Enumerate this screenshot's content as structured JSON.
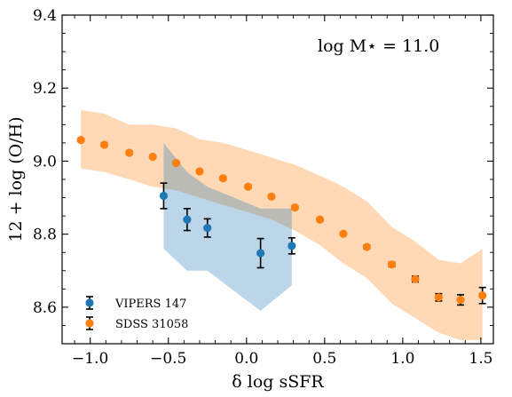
{
  "chart_data": {
    "type": "scatter",
    "xlabel": "δ log sSFR",
    "ylabel": "12 + log (O/H)",
    "annotation": "log M⋆ = 11.0",
    "xlim": [
      -1.18,
      1.58
    ],
    "ylim": [
      8.5,
      9.4
    ],
    "xticks": [
      -1.0,
      -0.5,
      0.0,
      0.5,
      1.0,
      1.5
    ],
    "xtick_labels": [
      "−1.0",
      "−0.5",
      "0.0",
      "0.5",
      "1.0",
      "1.5"
    ],
    "yticks": [
      8.6,
      8.8,
      9.0,
      9.2,
      9.4
    ],
    "ytick_labels": [
      "8.6",
      "8.8",
      "9.0",
      "9.2",
      "9.4"
    ],
    "grid": false,
    "legend_position": "bottom-left",
    "series": [
      {
        "name": "VIPERS 147",
        "color": "#1f77b4",
        "points": [
          {
            "x": -0.53,
            "y": 8.905,
            "err": 0.035
          },
          {
            "x": -0.38,
            "y": 8.84,
            "err": 0.03
          },
          {
            "x": -0.25,
            "y": 8.817,
            "err": 0.025
          },
          {
            "x": 0.09,
            "y": 8.748,
            "err": 0.04
          },
          {
            "x": 0.29,
            "y": 8.768,
            "err": 0.022
          }
        ],
        "band": {
          "color": "#1f77b4",
          "opacity": 0.3,
          "x": [
            -0.53,
            -0.38,
            -0.25,
            0.09,
            0.29
          ],
          "upper": [
            9.05,
            8.97,
            8.93,
            8.87,
            8.87
          ],
          "lower": [
            8.76,
            8.7,
            8.7,
            8.59,
            8.66
          ]
        }
      },
      {
        "name": "SDSS 31058",
        "color": "#ff7f0e",
        "points": [
          {
            "x": -1.06,
            "y": 9.058,
            "err": 0.004
          },
          {
            "x": -0.91,
            "y": 9.045,
            "err": 0.004
          },
          {
            "x": -0.75,
            "y": 9.023,
            "err": 0.004
          },
          {
            "x": -0.6,
            "y": 9.012,
            "err": 0.004
          },
          {
            "x": -0.45,
            "y": 8.995,
            "err": 0.004
          },
          {
            "x": -0.3,
            "y": 8.972,
            "err": 0.004
          },
          {
            "x": -0.15,
            "y": 8.953,
            "err": 0.004
          },
          {
            "x": 0.01,
            "y": 8.93,
            "err": 0.004
          },
          {
            "x": 0.16,
            "y": 8.903,
            "err": 0.004
          },
          {
            "x": 0.31,
            "y": 8.873,
            "err": 0.004
          },
          {
            "x": 0.47,
            "y": 8.84,
            "err": 0.004
          },
          {
            "x": 0.62,
            "y": 8.801,
            "err": 0.004
          },
          {
            "x": 0.77,
            "y": 8.765,
            "err": 0.005
          },
          {
            "x": 0.93,
            "y": 8.717,
            "err": 0.006
          },
          {
            "x": 1.08,
            "y": 8.677,
            "err": 0.008
          },
          {
            "x": 1.23,
            "y": 8.627,
            "err": 0.01
          },
          {
            "x": 1.37,
            "y": 8.62,
            "err": 0.014
          },
          {
            "x": 1.51,
            "y": 8.632,
            "err": 0.022
          }
        ],
        "band": {
          "color": "#ff7f0e",
          "opacity": 0.3,
          "x": [
            -1.06,
            -0.91,
            -0.75,
            -0.6,
            -0.45,
            -0.3,
            -0.15,
            0.01,
            0.16,
            0.31,
            0.47,
            0.62,
            0.77,
            0.93,
            1.08,
            1.23,
            1.37,
            1.51
          ],
          "upper": [
            9.14,
            9.13,
            9.1,
            9.1,
            9.09,
            9.06,
            9.05,
            9.03,
            9.01,
            8.99,
            8.96,
            8.93,
            8.89,
            8.82,
            8.78,
            8.73,
            8.72,
            8.76
          ],
          "lower": [
            8.98,
            8.97,
            8.95,
            8.93,
            8.92,
            8.9,
            8.88,
            8.86,
            8.84,
            8.81,
            8.77,
            8.72,
            8.68,
            8.61,
            8.57,
            8.53,
            8.51,
            8.51
          ]
        }
      }
    ]
  }
}
